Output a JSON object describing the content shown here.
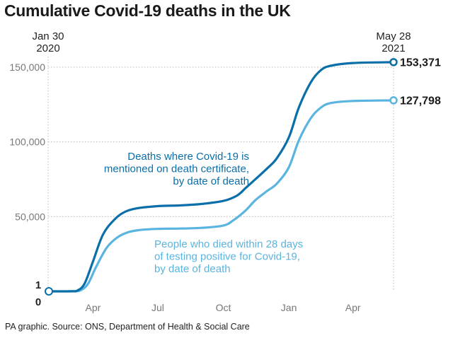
{
  "chart_data": {
    "type": "line",
    "title": "Cumulative Covid-19 deaths in the UK",
    "source": "PA graphic. Source: ONS, Department of Health & Social Care",
    "x_start_label": [
      "Jan 30",
      "2020"
    ],
    "x_end_label": [
      "May 28",
      "2021"
    ],
    "x_domain": [
      "2020-01-30",
      "2021-05-28"
    ],
    "x_ticks": [
      {
        "date": "2020-04-01",
        "label": "Apr"
      },
      {
        "date": "2020-07-01",
        "label": "Jul"
      },
      {
        "date": "2020-10-01",
        "label": "Oct"
      },
      {
        "date": "2021-01-01",
        "label": "Jan"
      },
      {
        "date": "2021-04-01",
        "label": "Apr"
      }
    ],
    "y_ticks": [
      {
        "value": 50000,
        "label": "50,000"
      },
      {
        "value": 100000,
        "label": "100,000"
      },
      {
        "value": 150000,
        "label": "150,000"
      }
    ],
    "y_start_labels": [
      "1",
      "0"
    ],
    "ylim": [
      0,
      160000
    ],
    "grid": true,
    "series": [
      {
        "label_lines": [
          "Deaths where Covid-19 is",
          "mentioned on death certificate,",
          "by date of death"
        ],
        "color": "#0a6fa8",
        "end_label": "153,371",
        "points": [
          [
            "2020-01-30",
            1
          ],
          [
            "2020-03-01",
            50
          ],
          [
            "2020-03-10",
            500
          ],
          [
            "2020-03-20",
            5000
          ],
          [
            "2020-04-01",
            20000
          ],
          [
            "2020-04-15",
            38000
          ],
          [
            "2020-05-01",
            48000
          ],
          [
            "2020-05-15",
            53000
          ],
          [
            "2020-06-01",
            55500
          ],
          [
            "2020-07-01",
            57000
          ],
          [
            "2020-08-01",
            57500
          ],
          [
            "2020-09-01",
            58500
          ],
          [
            "2020-10-01",
            60500
          ],
          [
            "2020-10-20",
            64000
          ],
          [
            "2020-11-01",
            69000
          ],
          [
            "2020-11-15",
            75000
          ],
          [
            "2020-12-01",
            82000
          ],
          [
            "2020-12-15",
            89000
          ],
          [
            "2021-01-01",
            103000
          ],
          [
            "2021-01-15",
            123000
          ],
          [
            "2021-02-01",
            140000
          ],
          [
            "2021-02-15",
            148000
          ],
          [
            "2021-03-01",
            151000
          ],
          [
            "2021-04-01",
            152800
          ],
          [
            "2021-05-28",
            153371
          ]
        ]
      },
      {
        "label_lines": [
          "People who died within 28 days",
          "of testing positive for Covid-19,",
          "by date of death"
        ],
        "color": "#5ab4e0",
        "end_label": "127,798",
        "points": [
          [
            "2020-01-30",
            1
          ],
          [
            "2020-03-05",
            50
          ],
          [
            "2020-03-15",
            800
          ],
          [
            "2020-03-25",
            5000
          ],
          [
            "2020-04-05",
            16000
          ],
          [
            "2020-04-20",
            29000
          ],
          [
            "2020-05-05",
            36000
          ],
          [
            "2020-05-20",
            39500
          ],
          [
            "2020-06-05",
            41000
          ],
          [
            "2020-07-01",
            41800
          ],
          [
            "2020-08-01",
            42000
          ],
          [
            "2020-09-01",
            42500
          ],
          [
            "2020-10-01",
            44000
          ],
          [
            "2020-10-15",
            47500
          ],
          [
            "2020-11-01",
            54000
          ],
          [
            "2020-11-15",
            61000
          ],
          [
            "2020-12-01",
            67000
          ],
          [
            "2020-12-15",
            72000
          ],
          [
            "2021-01-01",
            83000
          ],
          [
            "2021-01-15",
            101000
          ],
          [
            "2021-02-01",
            116000
          ],
          [
            "2021-02-15",
            123000
          ],
          [
            "2021-03-01",
            126000
          ],
          [
            "2021-04-01",
            127400
          ],
          [
            "2021-05-28",
            127798
          ]
        ]
      }
    ]
  }
}
